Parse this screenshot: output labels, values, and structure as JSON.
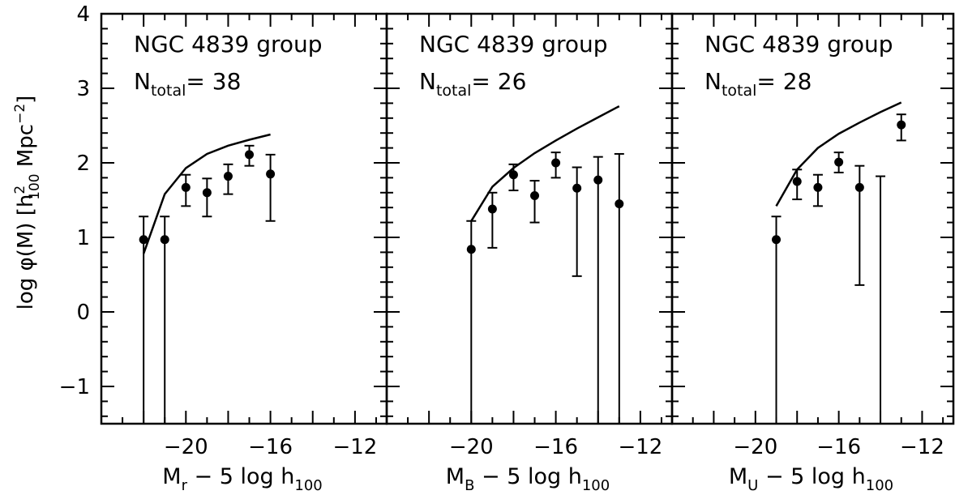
{
  "figure": {
    "ylabel_prefix": "log φ(M) [h",
    "ylabel_sup": "2",
    "ylabel_sub": "100",
    "ylabel_suffix": " Mpc",
    "ylabel_exp": "−2",
    "ylabel_close": "]"
  },
  "chart_data": [
    {
      "type": "scatter",
      "panel": "r",
      "title": "NGC 4839 group",
      "ntotal_label": "N",
      "ntotal_sub": "total",
      "ntotal_value": "= 38",
      "xlabel_main": "M",
      "xlabel_band": "r",
      "xlabel_rest": " − 5 log h",
      "xlabel_sub": "100",
      "xlim": [
        -24,
        -10.5
      ],
      "ylim": [
        -1.5,
        4
      ],
      "xticks": [
        -20,
        -16,
        -12
      ],
      "xtick_labels": [
        "−20",
        "−16",
        "−12"
      ],
      "yticks": [
        -1,
        0,
        1,
        2,
        3,
        4
      ],
      "ytick_labels": [
        "−1",
        "0",
        "1",
        "2",
        "3",
        "4"
      ],
      "points": [
        {
          "x": -22,
          "y": 0.97,
          "ylo": -1.5,
          "yhi": 1.28
        },
        {
          "x": -21,
          "y": 0.97,
          "ylo": -1.5,
          "yhi": 1.28
        },
        {
          "x": -20,
          "y": 1.67,
          "ylo": 1.42,
          "yhi": 1.84
        },
        {
          "x": -19,
          "y": 1.6,
          "ylo": 1.28,
          "yhi": 1.79
        },
        {
          "x": -18,
          "y": 1.82,
          "ylo": 1.58,
          "yhi": 1.98
        },
        {
          "x": -17,
          "y": 2.11,
          "ylo": 1.96,
          "yhi": 2.23
        },
        {
          "x": -16,
          "y": 1.85,
          "ylo": 1.22,
          "yhi": 2.11
        }
      ],
      "model_line": {
        "x": [
          -22,
          -21,
          -20,
          -19,
          -18,
          -17,
          -16
        ],
        "y": [
          0.78,
          1.58,
          1.93,
          2.12,
          2.23,
          2.31,
          2.38
        ]
      }
    },
    {
      "type": "scatter",
      "panel": "B",
      "title": "NGC 4839 group",
      "ntotal_label": "N",
      "ntotal_sub": "total",
      "ntotal_value": "= 26",
      "xlabel_main": "M",
      "xlabel_band": "B",
      "xlabel_rest": " − 5 log h",
      "xlabel_sub": "100",
      "xlim": [
        -24,
        -10.5
      ],
      "ylim": [
        -1.5,
        4
      ],
      "xticks": [
        -20,
        -16,
        -12
      ],
      "xtick_labels": [
        "−20",
        "−16",
        "−12"
      ],
      "yticks": [
        -1,
        0,
        1,
        2,
        3,
        4
      ],
      "points": [
        {
          "x": -20,
          "y": 0.84,
          "ylo": -1.5,
          "yhi": 1.22
        },
        {
          "x": -19,
          "y": 1.38,
          "ylo": 0.86,
          "yhi": 1.6
        },
        {
          "x": -18,
          "y": 1.84,
          "ylo": 1.63,
          "yhi": 1.98
        },
        {
          "x": -17,
          "y": 1.56,
          "ylo": 1.2,
          "yhi": 1.76
        },
        {
          "x": -16,
          "y": 2.0,
          "ylo": 1.8,
          "yhi": 2.14
        },
        {
          "x": -15,
          "y": 1.66,
          "ylo": 0.48,
          "yhi": 1.94
        },
        {
          "x": -14,
          "y": 1.77,
          "ylo": -1.5,
          "yhi": 2.08
        },
        {
          "x": -13,
          "y": 1.45,
          "ylo": -1.5,
          "yhi": 2.12
        }
      ],
      "model_line": {
        "x": [
          -20,
          -19,
          -18,
          -17,
          -16,
          -15,
          -14,
          -13
        ],
        "y": [
          1.22,
          1.68,
          1.93,
          2.13,
          2.3,
          2.46,
          2.61,
          2.76
        ]
      }
    },
    {
      "type": "scatter",
      "panel": "U",
      "title": "NGC 4839 group",
      "ntotal_label": "N",
      "ntotal_sub": "total",
      "ntotal_value": "= 28",
      "xlabel_main": "M",
      "xlabel_band": "U",
      "xlabel_rest": " − 5 log h",
      "xlabel_sub": "100",
      "xlim": [
        -24,
        -10.5
      ],
      "ylim": [
        -1.5,
        4
      ],
      "xticks": [
        -20,
        -16,
        -12
      ],
      "xtick_labels": [
        "−20",
        "−16",
        "−12"
      ],
      "yticks": [
        -1,
        0,
        1,
        2,
        3,
        4
      ],
      "points": [
        {
          "x": -19,
          "y": 0.97,
          "ylo": -1.5,
          "yhi": 1.28
        },
        {
          "x": -18,
          "y": 1.75,
          "ylo": 1.51,
          "yhi": 1.91
        },
        {
          "x": -17,
          "y": 1.67,
          "ylo": 1.42,
          "yhi": 1.84
        },
        {
          "x": -16,
          "y": 2.01,
          "ylo": 1.87,
          "yhi": 2.14
        },
        {
          "x": -15,
          "y": 1.67,
          "ylo": 0.36,
          "yhi": 1.96
        },
        {
          "x": -14,
          "y": null,
          "ylo": -1.5,
          "yhi": 1.82
        },
        {
          "x": -13,
          "y": 2.51,
          "ylo": 2.3,
          "yhi": 2.65
        }
      ],
      "model_line": {
        "x": [
          -19,
          -18,
          -17,
          -16,
          -15,
          -14,
          -13
        ],
        "y": [
          1.42,
          1.91,
          2.2,
          2.39,
          2.54,
          2.68,
          2.81
        ]
      }
    }
  ]
}
